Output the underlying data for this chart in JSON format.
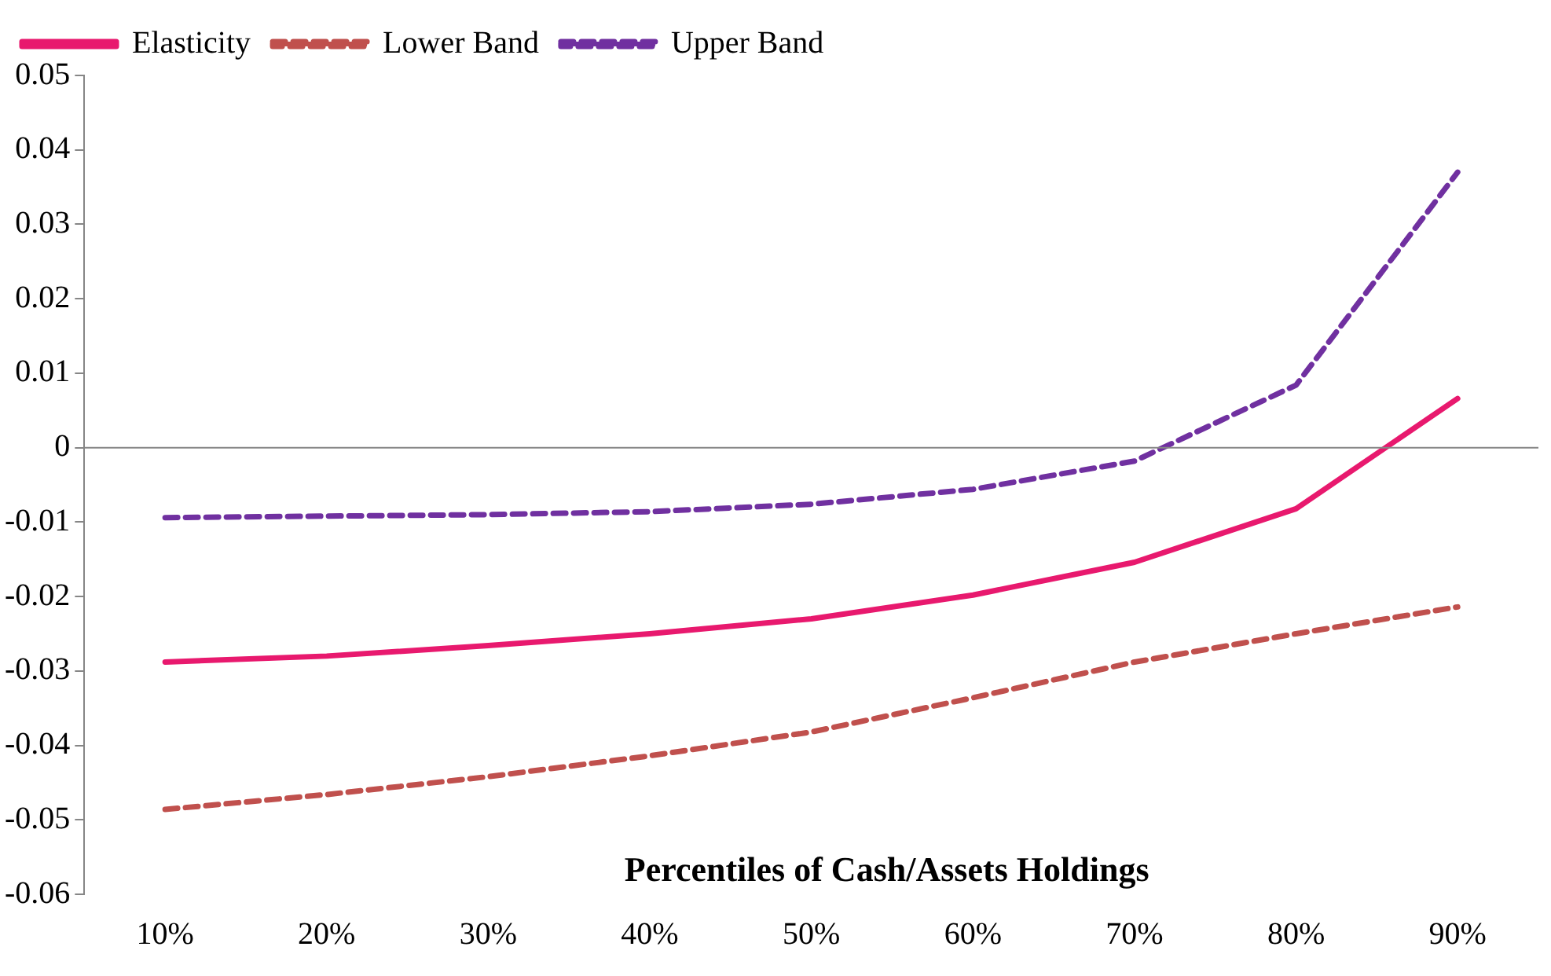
{
  "chart_data": {
    "type": "line",
    "xlabel": "Percentiles of Cash/Assets Holdings",
    "categories": [
      "10%",
      "20%",
      "30%",
      "40%",
      "50%",
      "60%",
      "70%",
      "80%",
      "90%"
    ],
    "series": [
      {
        "name": "Elasticity",
        "color": "#e8196e",
        "line_style": "solid",
        "values": [
          -0.0288,
          -0.028,
          -0.0266,
          -0.025,
          -0.023,
          -0.0198,
          -0.0154,
          -0.0082,
          0.0066
        ]
      },
      {
        "name": "Lower Band",
        "color": "#c0504d",
        "line_style": "dashed",
        "values": [
          -0.0486,
          -0.0466,
          -0.0442,
          -0.0414,
          -0.0382,
          -0.0336,
          -0.0288,
          -0.025,
          -0.0214
        ]
      },
      {
        "name": "Upper Band",
        "color": "#7030a0",
        "line_style": "dashed",
        "values": [
          -0.0094,
          -0.0092,
          -0.009,
          -0.0086,
          -0.0076,
          -0.0056,
          -0.0018,
          0.0084,
          0.037
        ]
      }
    ],
    "ylim": [
      -0.06,
      0.05
    ],
    "yticks": [
      -0.06,
      -0.05,
      -0.04,
      -0.03,
      -0.02,
      -0.01,
      0,
      0.01,
      0.02,
      0.03,
      0.04,
      0.05
    ],
    "ref_lines": [
      {
        "axis": "y",
        "value": 0,
        "color": "#868686"
      }
    ],
    "grid": false,
    "legend": "top left",
    "marker": "none"
  }
}
